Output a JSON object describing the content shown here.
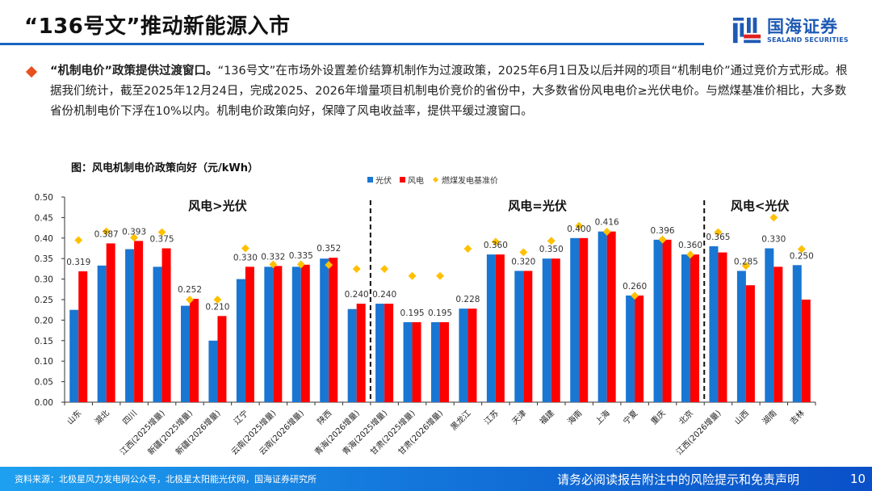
{
  "header": {
    "title": "“136号文”推动新能源入市",
    "logo_cn": "国海证券",
    "logo_en": "SEALAND SECURITIES"
  },
  "bullet": {
    "lead": "“机制电价”政策提供过渡窗口。",
    "body": "“136号文”在市场外设置差价结算机制作为过渡政策，2025年6月1日及以后并网的项目“机制电价”通过竞价方式形成。根据我们统计，截至2025年12月24日，完成2025、2026年增量项目机制电价竞价的省份中，大多数省份风电电价≥光伏电价。与燃煤基准价相比，大多数省份机制电价下浮在10%以内。机制电价政策向好，保障了风电收益率，提供平缓过渡窗口。"
  },
  "colors": {
    "solar": "#1976d2",
    "wind": "#ff0000",
    "coal": "#ffc000",
    "accent": "#1565c0",
    "bullet": "#e8501e"
  },
  "chart_data": {
    "type": "bar",
    "title": "图：风电机制电价政策向好（元/kWh）",
    "xlabel": "",
    "ylabel": "",
    "ylim": [
      0,
      0.5
    ],
    "yticks": [
      "0.00",
      "0.05",
      "0.10",
      "0.15",
      "0.20",
      "0.25",
      "0.30",
      "0.35",
      "0.40",
      "0.45",
      "0.50"
    ],
    "grid": false,
    "legend_position": "top-right",
    "categories": [
      "山东",
      "湖北",
      "四川",
      "江西(2025增量)",
      "新疆(2025增量)",
      "新疆(2026增量)",
      "辽宁",
      "云南(2025增量)",
      "云南(2026增量)",
      "陕西",
      "青海(2026增量)",
      "青海(2025增量)",
      "甘肃(2025增量)",
      "甘肃(2026增量)",
      "黑龙江",
      "江苏",
      "天津",
      "福建",
      "海南",
      "上海",
      "宁夏",
      "重庆",
      "北京",
      "江西(2026增量)",
      "山西",
      "湖南",
      "吉林"
    ],
    "series": [
      {
        "name": "光伏",
        "type": "bar",
        "values": [
          0.225,
          0.333,
          0.373,
          0.33,
          0.235,
          0.15,
          0.3,
          0.33,
          0.33,
          0.35,
          0.227,
          0.24,
          0.195,
          0.195,
          0.228,
          0.36,
          0.32,
          0.35,
          0.4,
          0.416,
          0.26,
          0.396,
          0.36,
          0.38,
          0.32,
          0.375,
          0.334
        ]
      },
      {
        "name": "风电",
        "type": "bar",
        "values": [
          0.319,
          0.387,
          0.393,
          0.375,
          0.252,
          0.21,
          0.33,
          0.332,
          0.335,
          0.352,
          0.24,
          0.24,
          0.195,
          0.195,
          0.228,
          0.36,
          0.32,
          0.35,
          0.4,
          0.416,
          0.26,
          0.396,
          0.36,
          0.365,
          0.285,
          0.33,
          0.25
        ]
      },
      {
        "name": "燃煤发电基准价",
        "type": "scatter",
        "values": [
          0.3949,
          0.4161,
          0.4012,
          0.4143,
          0.25,
          0.25,
          0.3749,
          0.3358,
          0.3358,
          0.3345,
          0.3247,
          0.3247,
          0.3078,
          0.3078,
          0.374,
          0.391,
          0.3655,
          0.3932,
          0.4298,
          0.4155,
          0.2595,
          0.3964,
          0.3598,
          0.4143,
          0.332,
          0.45,
          0.3731
        ]
      }
    ],
    "data_labels": [
      "0.319",
      "0.387",
      "0.393",
      "0.375",
      "0.252",
      "0.210",
      "0.330",
      "0.332",
      "0.335",
      "0.352",
      "0.240",
      "0.240",
      "0.195",
      "0.195",
      "0.228",
      "0.360",
      "0.320",
      "0.350",
      "0.400",
      "0.416",
      "0.260",
      "0.396",
      "0.360",
      "0.365",
      "0.285",
      "0.330",
      "0.250"
    ],
    "regions": [
      {
        "label": "风电>光伏",
        "from": 0,
        "to": 10
      },
      {
        "label": "风电=光伏",
        "from": 11,
        "to": 22
      },
      {
        "label": "风电<光伏",
        "from": 23,
        "to": 26
      }
    ]
  },
  "footer": {
    "source": "资料来源：北极星风力发电网公众号，北极星太阳能光伏网，国海证券研究所",
    "disclaimer": "请务必阅读报告附注中的风险提示和免责声明",
    "page": "10"
  }
}
